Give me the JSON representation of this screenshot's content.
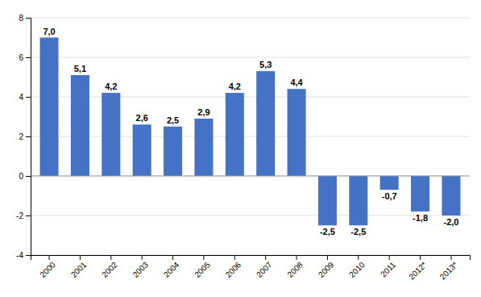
{
  "chart_data": {
    "type": "bar",
    "categories": [
      "2000",
      "2001",
      "2002",
      "2003",
      "2004",
      "2005",
      "2006",
      "2007",
      "2008",
      "2009",
      "2010",
      "2011",
      "2012*",
      "2013*"
    ],
    "values": [
      7.0,
      5.1,
      4.2,
      2.6,
      2.5,
      2.9,
      4.2,
      5.3,
      4.4,
      -2.5,
      -2.5,
      -0.7,
      -1.8,
      -2.0
    ],
    "value_labels": [
      "7,0",
      "5,1",
      "4,2",
      "2,6",
      "2,5",
      "2,9",
      "4,2",
      "5,3",
      "4,4",
      "-2,5",
      "-2,5",
      "-0,7",
      "-1,8",
      "-2,0"
    ],
    "color": "#4472C4",
    "ylim": [
      -4,
      8
    ],
    "yticks": [
      -4,
      -2,
      0,
      2,
      4,
      6,
      8
    ],
    "grid": true,
    "data_labels": true
  }
}
